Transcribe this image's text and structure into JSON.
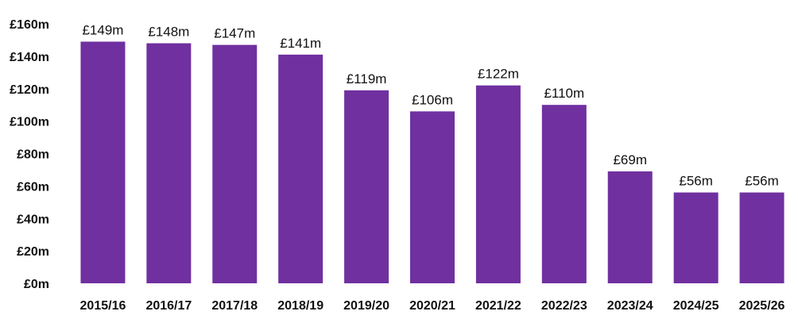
{
  "colors": {
    "bar": "#7030A0",
    "text": "#111111",
    "background": "#FFFFFF"
  },
  "chart_data": {
    "type": "bar",
    "title": "",
    "xlabel": "",
    "ylabel": "",
    "grid": false,
    "legend": "none",
    "ylim": [
      0,
      160
    ],
    "y_ticks": [
      0,
      20,
      40,
      60,
      80,
      100,
      120,
      140,
      160
    ],
    "y_tick_labels": [
      "£0m",
      "£20m",
      "£40m",
      "£60m",
      "£80m",
      "£100m",
      "£120m",
      "£140m",
      "£160m"
    ],
    "categories": [
      "2015/16",
      "2016/17",
      "2017/18",
      "2018/19",
      "2019/20",
      "2020/21",
      "2021/22",
      "2022/23",
      "2023/24",
      "2024/25",
      "2025/26"
    ],
    "values": [
      149,
      148,
      147,
      141,
      119,
      106,
      122,
      110,
      69,
      56,
      56
    ],
    "data_labels": [
      "£149m",
      "£148m",
      "£147m",
      "£141m",
      "£119m",
      "£106m",
      "£122m",
      "£110m",
      "£69m",
      "£56m",
      "£56m"
    ]
  }
}
